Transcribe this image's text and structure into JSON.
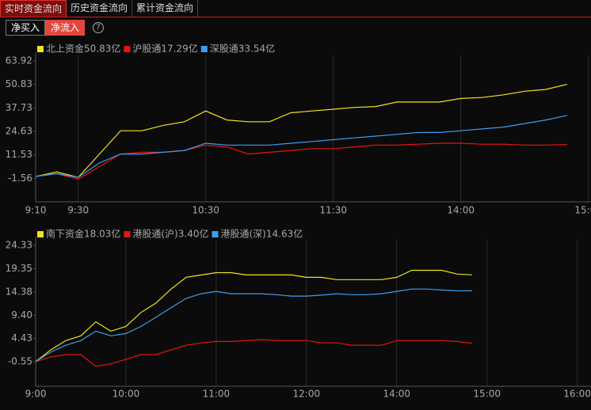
{
  "tabs": [
    "实时资金流向",
    "历史资金流向",
    "累计资金流向"
  ],
  "buttons": [
    "净买入",
    "净流入"
  ],
  "help": "?",
  "chart_data": [
    {
      "type": "line",
      "x": [
        0,
        10,
        20,
        30,
        40,
        50,
        60,
        70,
        80,
        90,
        100,
        110,
        120,
        130,
        140,
        150,
        160,
        170,
        180,
        190,
        200,
        210,
        220,
        230,
        240,
        250
      ],
      "xlim": [
        0,
        259
      ],
      "xticks": [
        {
          "value": 0,
          "label": "9:10"
        },
        {
          "value": 20,
          "label": "9:30"
        },
        {
          "value": 80,
          "label": "10:30"
        },
        {
          "value": 140,
          "label": "11:30"
        },
        {
          "value": 200,
          "label": "14:00"
        },
        {
          "value": 260,
          "label": "15:00"
        }
      ],
      "ylim": [
        -14.65,
        67
      ],
      "yticks": [
        63.92,
        50.83,
        37.73,
        24.63,
        11.53,
        -1.56
      ],
      "grid": "x",
      "series": [
        {
          "name": "北上资金",
          "last_label": "50.83亿",
          "color": "#f2e21c",
          "values": [
            -0.5,
            2,
            -1,
            12,
            25,
            25,
            28,
            30,
            36,
            31,
            30,
            30,
            35,
            36,
            37,
            38,
            38.5,
            41,
            41,
            41,
            43,
            43.5,
            45,
            47,
            48,
            50.83
          ]
        },
        {
          "name": "沪股通",
          "last_label": "17.29亿",
          "color": "#e8140e",
          "values": [
            -0.5,
            1,
            -2,
            5,
            12,
            13,
            13,
            14,
            17,
            16,
            12,
            13,
            14,
            15,
            15,
            16,
            17,
            17,
            17.5,
            18,
            18,
            17.5,
            17.5,
            17,
            17,
            17.29
          ]
        },
        {
          "name": "深股通",
          "last_label": "33.54亿",
          "color": "#3d9cf2",
          "values": [
            -0.5,
            1,
            -1,
            7,
            12,
            12,
            13,
            14,
            18,
            17,
            17,
            17,
            18,
            19,
            20,
            21,
            22,
            23,
            24,
            24,
            25,
            26,
            27,
            29,
            31,
            33.54
          ]
        }
      ]
    },
    {
      "type": "line",
      "x": [
        0,
        10,
        20,
        30,
        40,
        50,
        60,
        70,
        80,
        90,
        100,
        110,
        120,
        130,
        140,
        150,
        160,
        170,
        180,
        190,
        200,
        210,
        220,
        230,
        240,
        250,
        260,
        270,
        280,
        290
      ],
      "xlim": [
        0,
        366
      ],
      "xticks": [
        {
          "value": 0,
          "label": "9:00"
        },
        {
          "value": 60,
          "label": "10:00"
        },
        {
          "value": 120,
          "label": "11:00"
        },
        {
          "value": 180,
          "label": "12:00"
        },
        {
          "value": 240,
          "label": "14:00"
        },
        {
          "value": 300,
          "label": "15:00"
        },
        {
          "value": 360,
          "label": "16:00"
        }
      ],
      "ylim": [
        -5.76,
        25.51
      ],
      "yticks": [
        24.33,
        19.35,
        14.38,
        {
          "value": 9.4,
          "label": "9.40"
        },
        4.43,
        -0.55
      ],
      "grid": "x",
      "series": [
        {
          "name": "南下资金",
          "last_label": "18.03亿",
          "color": "#f2e21c",
          "values": [
            -0.5,
            2,
            4,
            5,
            8,
            6,
            7,
            10,
            12,
            15,
            17.5,
            18,
            18.5,
            18.5,
            18,
            18,
            18,
            18,
            17.5,
            17.5,
            17,
            17,
            17,
            17,
            17.5,
            19,
            19,
            19,
            18.2,
            18.03
          ]
        },
        {
          "name": "港股通(沪)",
          "last_label": "3.40亿",
          "color": "#e8140e",
          "values": [
            -0.5,
            0.5,
            1,
            1,
            -1.5,
            -1,
            0,
            1,
            1,
            2,
            3,
            3.5,
            3.8,
            3.8,
            4,
            4.2,
            4,
            4,
            4,
            3.5,
            3.5,
            3,
            3,
            3,
            4,
            4,
            4,
            4,
            3.8,
            3.4
          ]
        },
        {
          "name": "港股通(深)",
          "last_label": "14.63亿",
          "color": "#3d9cf2",
          "values": [
            -0.5,
            1.5,
            3,
            4,
            6,
            5,
            5.5,
            7,
            9,
            11,
            13,
            14,
            14.5,
            14,
            14,
            14,
            13.8,
            13.5,
            13.5,
            13.7,
            14,
            13.8,
            13.8,
            14,
            14.5,
            15,
            15,
            14.8,
            14.6,
            14.63
          ]
        }
      ]
    }
  ]
}
